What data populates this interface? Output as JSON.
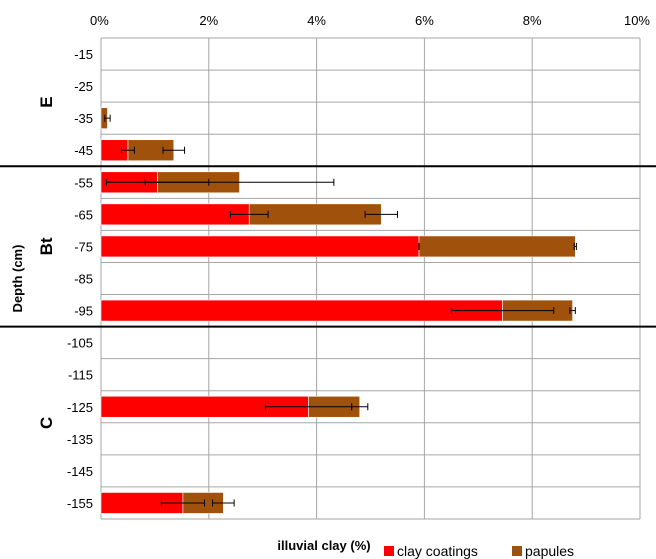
{
  "chart_data": {
    "type": "bar",
    "orientation": "horizontal",
    "stacked": true,
    "xlabel": "illuvial clay (%)",
    "ylabel": "Depth (cm)",
    "xlim": [
      0,
      10
    ],
    "x_ticks": [
      "0%",
      "2%",
      "4%",
      "6%",
      "8%",
      "10%"
    ],
    "categories": [
      "-15",
      "-25",
      "-35",
      "-45",
      "-55",
      "-65",
      "-75",
      "-85",
      "-95",
      "-105",
      "-115",
      "-125",
      "-135",
      "-145",
      "-155"
    ],
    "grid": true,
    "legend_position": "bottom",
    "series": [
      {
        "name": "clay coatings",
        "color": "#ff0000",
        "values": [
          null,
          null,
          0.0,
          0.5,
          1.05,
          2.75,
          5.9,
          null,
          7.45,
          null,
          null,
          3.85,
          null,
          null,
          1.52
        ],
        "error": [
          null,
          null,
          null,
          0.12,
          0.95,
          0.35,
          0.0,
          null,
          0.95,
          null,
          null,
          0.8,
          null,
          null,
          0.4
        ]
      },
      {
        "name": "papules",
        "color": "#a0520d",
        "values": [
          null,
          null,
          0.12,
          0.85,
          1.52,
          2.45,
          2.9,
          null,
          1.3,
          null,
          null,
          0.95,
          null,
          null,
          0.75
        ],
        "error": [
          null,
          null,
          0.05,
          0.2,
          1.75,
          0.3,
          0.02,
          null,
          0.05,
          null,
          null,
          0.15,
          null,
          null,
          0.2
        ]
      }
    ],
    "horizons": [
      {
        "label": "E",
        "from": "-15",
        "to": "-45"
      },
      {
        "label": "Bt",
        "from": "-55",
        "to": "-95"
      },
      {
        "label": "C",
        "from": "-105",
        "to": "-155"
      }
    ]
  }
}
